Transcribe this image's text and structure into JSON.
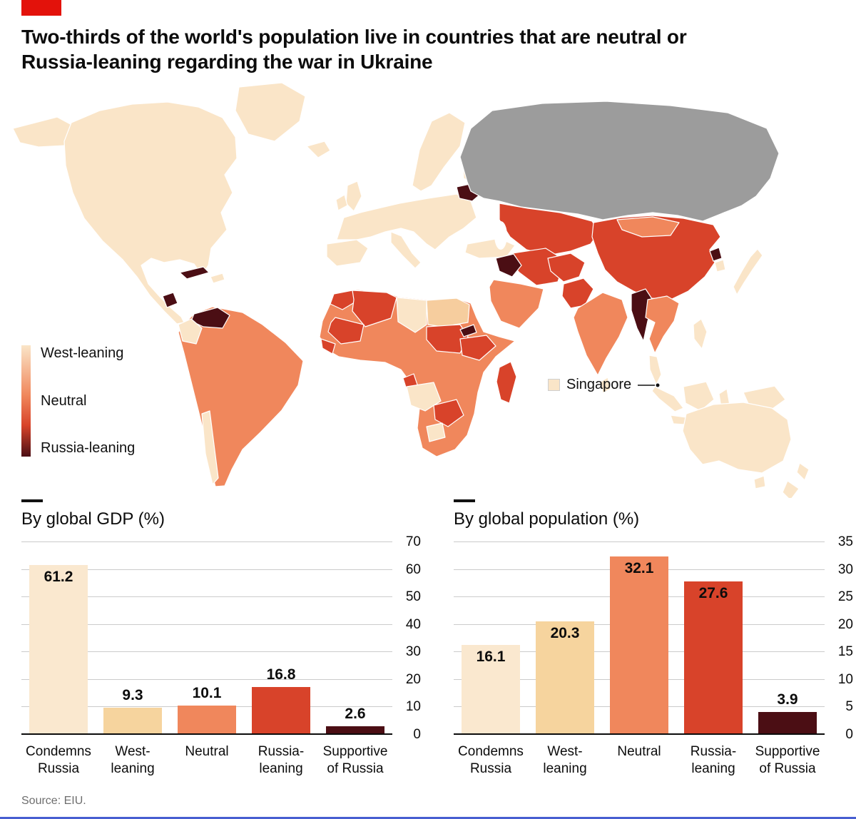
{
  "palette": {
    "brand": "#E3120B",
    "blue": "#475ED1",
    "west": "#FAE5C8",
    "light": "#F6CD9E",
    "neutral": "#F0875C",
    "red": "#D8432A",
    "dark": "#4B0E14",
    "gray": "#9C9C9C"
  },
  "header": {
    "title": "Two-thirds of the world's population live in countries that are neutral or\nRussia-leaning regarding the war in Ukraine"
  },
  "legend": {
    "west": "West-leaning",
    "neutral": "Neutral",
    "russia": "Russia-leaning"
  },
  "map": {
    "callout": "Singapore",
    "no_data_region": "Russia"
  },
  "chart_data": [
    {
      "type": "bar",
      "title": "By global GDP (%)",
      "categories": [
        "Condemns\nRussia",
        "West-\nleaning",
        "Neutral",
        "Russia-\nleaning",
        "Supportive\nof Russia"
      ],
      "values": [
        61.2,
        9.3,
        10.1,
        16.8,
        2.6
      ],
      "ylim": [
        0,
        70
      ],
      "yticks": [
        0,
        10,
        20,
        30,
        40,
        50,
        60,
        70
      ],
      "bar_colors": [
        "#FAE8CF",
        "#F6D49E",
        "#F0875C",
        "#D8432A",
        "#4B0E14"
      ],
      "label_inside": [
        true,
        false,
        false,
        false,
        false
      ],
      "axis_side": "right",
      "grid": true,
      "legend_position": "none"
    },
    {
      "type": "bar",
      "title": "By global population (%)",
      "categories": [
        "Condemns\nRussia",
        "West-\nleaning",
        "Neutral",
        "Russia-\nleaning",
        "Supportive\nof Russia"
      ],
      "values": [
        16.1,
        20.3,
        32.1,
        27.6,
        3.9
      ],
      "ylim": [
        0,
        35
      ],
      "yticks": [
        0,
        5,
        10,
        15,
        20,
        25,
        30,
        35
      ],
      "bar_colors": [
        "#FAE8CF",
        "#F6D49E",
        "#F0875C",
        "#D8432A",
        "#4B0E14"
      ],
      "label_inside": [
        true,
        true,
        true,
        true,
        false
      ],
      "axis_side": "right",
      "grid": true,
      "legend_position": "none"
    }
  ],
  "footer": {
    "source": "Source: EIU."
  }
}
